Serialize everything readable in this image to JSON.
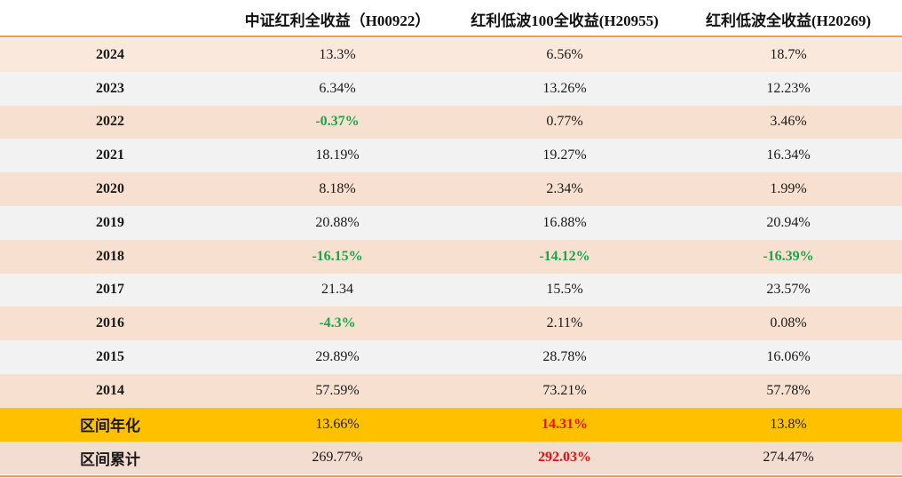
{
  "table": {
    "headers": [
      "",
      "中证红利全收益（H00922）",
      "红利低波100全收益(H20955)",
      "红利低波全收益(H20269)"
    ],
    "rows": [
      {
        "year": "2024",
        "v": [
          "13.3%",
          "6.56%",
          "18.7%"
        ],
        "neg": [
          false,
          false,
          false
        ]
      },
      {
        "year": "2023",
        "v": [
          "6.34%",
          "13.26%",
          "12.23%"
        ],
        "neg": [
          false,
          false,
          false
        ]
      },
      {
        "year": "2022",
        "v": [
          "-0.37%",
          "0.77%",
          "3.46%"
        ],
        "neg": [
          true,
          false,
          false
        ]
      },
      {
        "year": "2021",
        "v": [
          "18.19%",
          "19.27%",
          "16.34%"
        ],
        "neg": [
          false,
          false,
          false
        ]
      },
      {
        "year": "2020",
        "v": [
          "8.18%",
          "2.34%",
          "1.99%"
        ],
        "neg": [
          false,
          false,
          false
        ]
      },
      {
        "year": "2019",
        "v": [
          "20.88%",
          "16.88%",
          "20.94%"
        ],
        "neg": [
          false,
          false,
          false
        ]
      },
      {
        "year": "2018",
        "v": [
          "-16.15%",
          "-14.12%",
          "-16.39%"
        ],
        "neg": [
          true,
          true,
          true
        ]
      },
      {
        "year": "2017",
        "v": [
          "21.34",
          "15.5%",
          "23.57%"
        ],
        "neg": [
          false,
          false,
          false
        ]
      },
      {
        "year": "2016",
        "v": [
          "-4.3%",
          "2.11%",
          "0.08%"
        ],
        "neg": [
          true,
          false,
          false
        ]
      },
      {
        "year": "2015",
        "v": [
          "29.89%",
          "28.78%",
          "16.06%"
        ],
        "neg": [
          false,
          false,
          false
        ]
      },
      {
        "year": "2014",
        "v": [
          "57.59%",
          "73.21%",
          "57.78%"
        ],
        "neg": [
          false,
          false,
          false
        ]
      }
    ],
    "summary": [
      {
        "label": "区间年化",
        "v": [
          "13.66%",
          "14.31%",
          "13.8%"
        ],
        "hi": [
          false,
          true,
          false
        ]
      },
      {
        "label": "区间累计",
        "v": [
          "269.77%",
          "292.03%",
          "274.47%"
        ],
        "hi": [
          false,
          true,
          false
        ]
      }
    ]
  },
  "colors": {
    "row_a": "#f7e0d0",
    "row_b": "#f2f2f2",
    "row_a_light": "#fbe8dc",
    "annual_row": "#ffc000",
    "cumulative_row": "#f3dcd0",
    "negative": "#14a84b",
    "highlight": "#e81010",
    "accent_line": "#f39a4a"
  }
}
